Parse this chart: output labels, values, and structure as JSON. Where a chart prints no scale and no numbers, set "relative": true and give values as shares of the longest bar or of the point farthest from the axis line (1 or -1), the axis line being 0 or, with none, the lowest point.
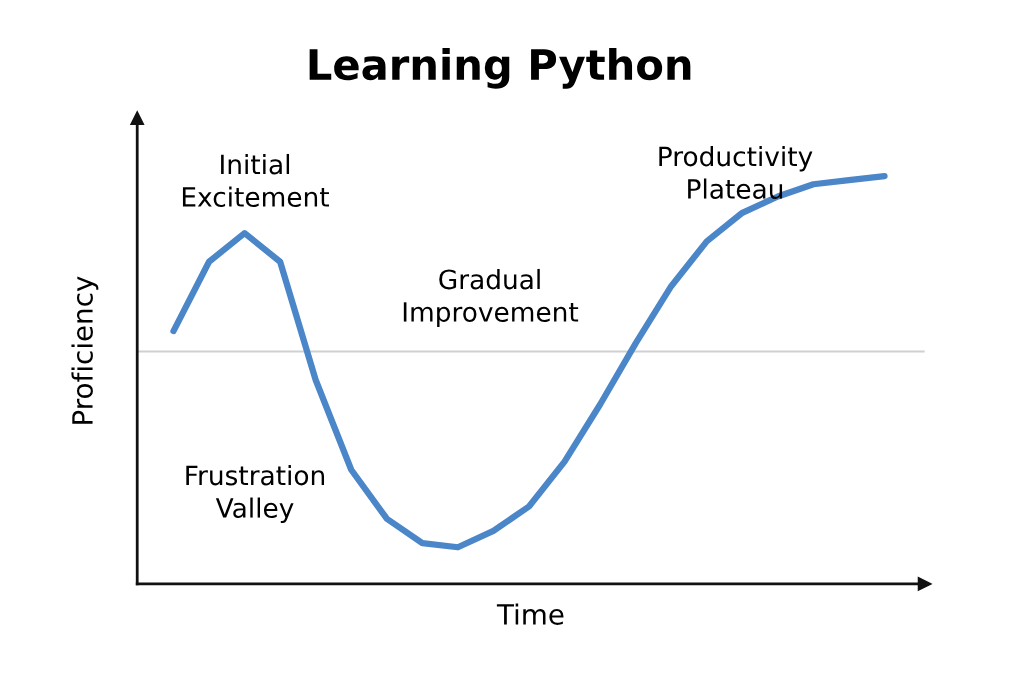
{
  "chart_data": {
    "type": "line",
    "title": "Learning Python",
    "xlabel": "Time",
    "ylabel": "Proficiency",
    "relative": true,
    "categories": [
      null,
      null,
      null,
      null,
      null,
      null,
      null,
      null,
      null,
      null,
      null,
      null,
      null,
      null,
      null,
      null,
      null,
      null,
      null,
      null,
      null
    ],
    "series": [
      {
        "color": "#4a86c8",
        "values": [
          0.62,
          0.79,
          0.86,
          0.79,
          0.5,
          0.28,
          0.16,
          0.1,
          0.09,
          0.13,
          0.19,
          0.3,
          0.44,
          0.59,
          0.73,
          0.84,
          0.91,
          0.95,
          0.98,
          0.99,
          1.0
        ]
      }
    ],
    "ref_lines": [
      {
        "axis": "y",
        "value": 0.57,
        "color": "#d0d0d0"
      }
    ],
    "annotations": [
      "Initial\nExcitement",
      "Frustration\nValley",
      "Gradual\nImprovement",
      "Productivity\nPlateau"
    ],
    "tick_labels": false,
    "grid": false,
    "legend": false,
    "marker": "none",
    "line_style": "solid"
  }
}
